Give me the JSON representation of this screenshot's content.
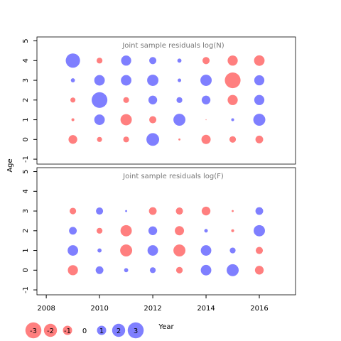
{
  "chart_data": [
    {
      "type": "bubble",
      "title": "Joint sample residuals log(N)",
      "x": [
        2009,
        2010,
        2011,
        2012,
        2013,
        2014,
        2015,
        2016
      ],
      "ages": [
        0,
        1,
        2,
        3,
        4
      ],
      "values": [
        [
          -0.9,
          -0.3,
          -0.4,
          1.9,
          -0.05,
          -1.0,
          -0.5,
          -0.7
        ],
        [
          -0.1,
          1.3,
          -1.5,
          -0.6,
          1.7,
          -0.01,
          0.1,
          1.7
        ],
        [
          -0.3,
          2.9,
          -0.4,
          0.9,
          0.4,
          0.9,
          -1.2,
          1.2
        ],
        [
          0.2,
          1.3,
          1.3,
          1.5,
          0.15,
          1.5,
          -2.9,
          1.2
        ],
        [
          2.4,
          -0.4,
          1.2,
          0.6,
          0.2,
          -0.6,
          -1.2,
          -1.3
        ]
      ],
      "xlim": [
        2007.65,
        2017.36
      ],
      "ylim": [
        -1.25,
        5.2
      ],
      "yticks": [
        -1,
        0,
        1,
        2,
        3,
        4,
        5
      ],
      "positive_color": "#0000ff",
      "negative_color": "#ff0000"
    },
    {
      "type": "bubble",
      "title": "Joint sample residuals log(F)",
      "x": [
        2009,
        2010,
        2011,
        2012,
        2013,
        2014,
        2015,
        2016
      ],
      "ages": [
        0,
        1,
        2,
        3
      ],
      "values": [
        [
          -1.2,
          0.7,
          0.2,
          0.4,
          -0.5,
          1.3,
          1.7,
          -0.9
        ],
        [
          1.3,
          0.2,
          -1.7,
          1.3,
          -1.7,
          1.3,
          0.4,
          -0.6
        ],
        [
          0.7,
          -0.4,
          -1.5,
          0.9,
          -1.0,
          0.15,
          -0.1,
          1.5
        ],
        [
          -0.5,
          0.6,
          0.05,
          -0.7,
          -0.6,
          -0.9,
          -0.05,
          0.7
        ]
      ],
      "xlim": [
        2007.65,
        2017.36
      ],
      "ylim": [
        -1.25,
        5.2
      ],
      "yticks": [
        -1,
        0,
        1,
        2,
        3,
        4,
        5
      ],
      "xticks": [
        2008,
        2010,
        2012,
        2014,
        2016
      ],
      "positive_color": "#0000ff",
      "negative_color": "#ff0000"
    }
  ],
  "x_label": "Year",
  "y_label": "Age",
  "legend": {
    "values": [
      -3,
      -2,
      -1,
      0,
      1,
      2,
      3
    ]
  }
}
